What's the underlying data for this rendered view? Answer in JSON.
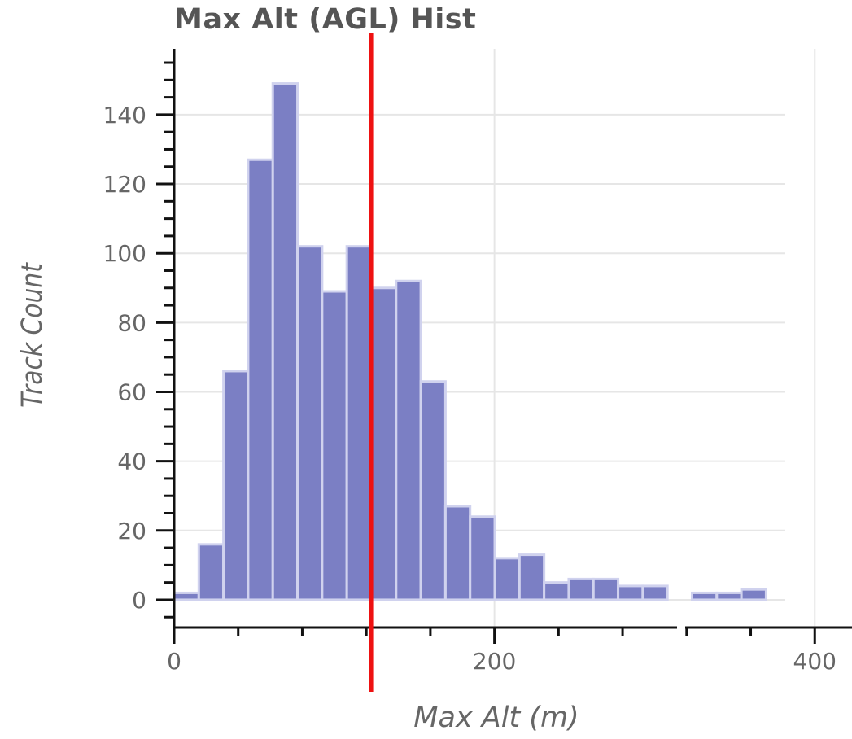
{
  "chart_data": {
    "type": "bar",
    "title": "Max Alt (AGL) Hist",
    "xlabel": "Max Alt (m)",
    "ylabel": "Track Count",
    "xlim": [
      0,
      408
    ],
    "ylim": [
      -8,
      159
    ],
    "xticks": [
      0,
      200,
      400
    ],
    "yticks": [
      0,
      20,
      40,
      60,
      80,
      100,
      120,
      140
    ],
    "grid": true,
    "bin_edges": [
      0,
      15.4,
      30.8,
      46.2,
      61.6,
      77,
      92.4,
      107.8,
      123.2,
      138.6,
      154,
      169.4,
      184.8,
      200.2,
      215.6,
      231,
      246.4,
      261.8,
      277.2,
      292.6,
      308,
      323.4,
      338.8,
      354.2,
      369.6
    ],
    "values": [
      2,
      16,
      66,
      127,
      149,
      102,
      89,
      102,
      90,
      92,
      63,
      27,
      24,
      12,
      13,
      5,
      6,
      6,
      4,
      4,
      0,
      2,
      2,
      3
    ],
    "bar_color": "#7b7fc4",
    "reference_line": {
      "x": 123,
      "color": "#ee1111"
    }
  }
}
